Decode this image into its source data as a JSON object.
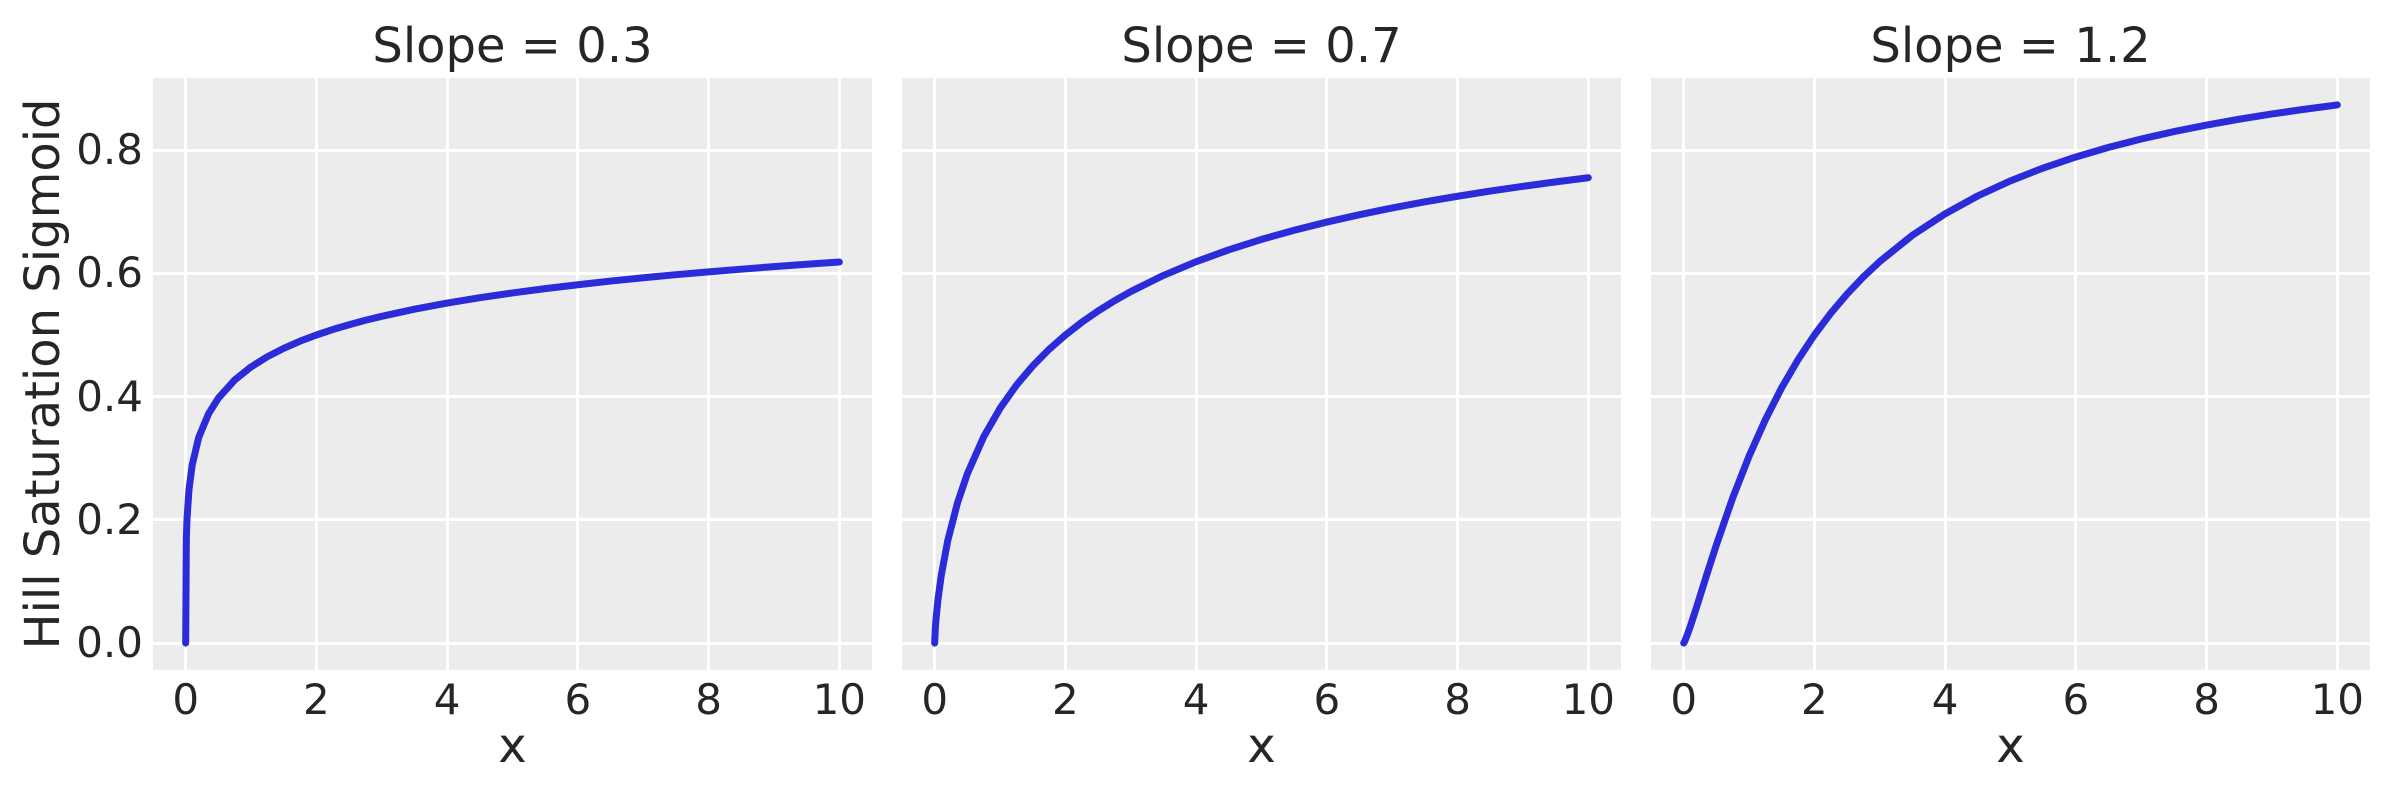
{
  "figure": {
    "ylabel": "Hill Saturation Sigmoid",
    "background_color": "#ffffff",
    "axes_background_color": "#ececec",
    "gridline_color": "#ffffff",
    "line_color": "#2b2bd9",
    "text_color": "#262626"
  },
  "chart_data": [
    {
      "type": "line",
      "title": "Slope = 0.3",
      "xlabel": "x",
      "ylabel": "Hill Saturation Sigmoid",
      "grid": true,
      "legend": false,
      "xlim": [
        -0.5,
        10.5
      ],
      "ylim": [
        -0.0437,
        0.9171
      ],
      "xticks": [
        0,
        2,
        4,
        6,
        8,
        10
      ],
      "xtick_labels": [
        "0",
        "2",
        "4",
        "6",
        "8",
        "10"
      ],
      "yticks": [
        0.0,
        0.2,
        0.4,
        0.6,
        0.8
      ],
      "ytick_labels": [
        "0.0",
        "0.2",
        "0.4",
        "0.6",
        "0.8"
      ],
      "x": [
        0,
        0.01,
        0.02,
        0.05,
        0.1,
        0.2,
        0.35,
        0.5,
        0.75,
        1,
        1.25,
        1.5,
        1.75,
        2,
        2.25,
        2.5,
        2.75,
        3,
        3.5,
        4,
        4.5,
        5,
        5.5,
        6,
        6.5,
        7,
        7.5,
        8,
        8.5,
        9,
        9.5,
        10
      ],
      "y": [
        0,
        0.1695,
        0.2008,
        0.2485,
        0.2893,
        0.3339,
        0.3722,
        0.3975,
        0.427,
        0.4482,
        0.4648,
        0.4784,
        0.49,
        0.5,
        0.5089,
        0.5167,
        0.5239,
        0.5304,
        0.5419,
        0.5518,
        0.5605,
        0.5683,
        0.5753,
        0.5816,
        0.5875,
        0.5929,
        0.5979,
        0.6025,
        0.6068,
        0.611,
        0.6148,
        0.6184
      ]
    },
    {
      "type": "line",
      "title": "Slope = 0.7",
      "xlabel": "x",
      "ylabel": "Hill Saturation Sigmoid",
      "grid": true,
      "legend": false,
      "xlim": [
        -0.5,
        10.5
      ],
      "ylim": [
        -0.0437,
        0.9171
      ],
      "xticks": [
        0,
        2,
        4,
        6,
        8,
        10
      ],
      "xtick_labels": [
        "0",
        "2",
        "4",
        "6",
        "8",
        "10"
      ],
      "yticks": [
        0.0,
        0.2,
        0.4,
        0.6,
        0.8
      ],
      "ytick_labels": [],
      "x": [
        0,
        0.01,
        0.02,
        0.05,
        0.1,
        0.2,
        0.35,
        0.5,
        0.75,
        1,
        1.25,
        1.5,
        1.75,
        2,
        2.25,
        2.5,
        2.75,
        3,
        3.5,
        4,
        4.5,
        5,
        5.5,
        6,
        6.5,
        7,
        7.5,
        8,
        8.5,
        9,
        9.5,
        10
      ],
      "y": [
        0,
        0.0239,
        0.0383,
        0.0703,
        0.1094,
        0.1663,
        0.2279,
        0.2748,
        0.3348,
        0.381,
        0.4185,
        0.4498,
        0.4767,
        0.5,
        0.5206,
        0.539,
        0.5555,
        0.5705,
        0.5967,
        0.619,
        0.6382,
        0.6551,
        0.67,
        0.6833,
        0.6953,
        0.7062,
        0.7161,
        0.7252,
        0.7336,
        0.7413,
        0.7485,
        0.7552
      ]
    },
    {
      "type": "line",
      "title": "Slope = 1.2",
      "xlabel": "x",
      "ylabel": "Hill Saturation Sigmoid",
      "grid": true,
      "legend": false,
      "xlim": [
        -0.5,
        10.5
      ],
      "ylim": [
        -0.0437,
        0.9171
      ],
      "xticks": [
        0,
        2,
        4,
        6,
        8,
        10
      ],
      "xtick_labels": [
        "0",
        "2",
        "4",
        "6",
        "8",
        "10"
      ],
      "yticks": [
        0.0,
        0.2,
        0.4,
        0.6,
        0.8
      ],
      "ytick_labels": [],
      "x": [
        0,
        0.01,
        0.02,
        0.05,
        0.1,
        0.2,
        0.35,
        0.5,
        0.75,
        1,
        1.25,
        1.5,
        1.75,
        2,
        2.25,
        2.5,
        2.75,
        3,
        3.5,
        4,
        4.5,
        5,
        5.5,
        6,
        6.5,
        7,
        7.5,
        8,
        8.5,
        9,
        9.5,
        10
      ],
      "y": [
        0,
        0.0017,
        0.004,
        0.0118,
        0.0267,
        0.0593,
        0.1099,
        0.1593,
        0.2356,
        0.3033,
        0.3626,
        0.4146,
        0.46,
        0.5,
        0.5353,
        0.5665,
        0.5944,
        0.6193,
        0.6619,
        0.6967,
        0.7258,
        0.7502,
        0.771,
        0.7889,
        0.8045,
        0.8181,
        0.8301,
        0.8407,
        0.8502,
        0.8587,
        0.8664,
        0.8734
      ]
    }
  ]
}
